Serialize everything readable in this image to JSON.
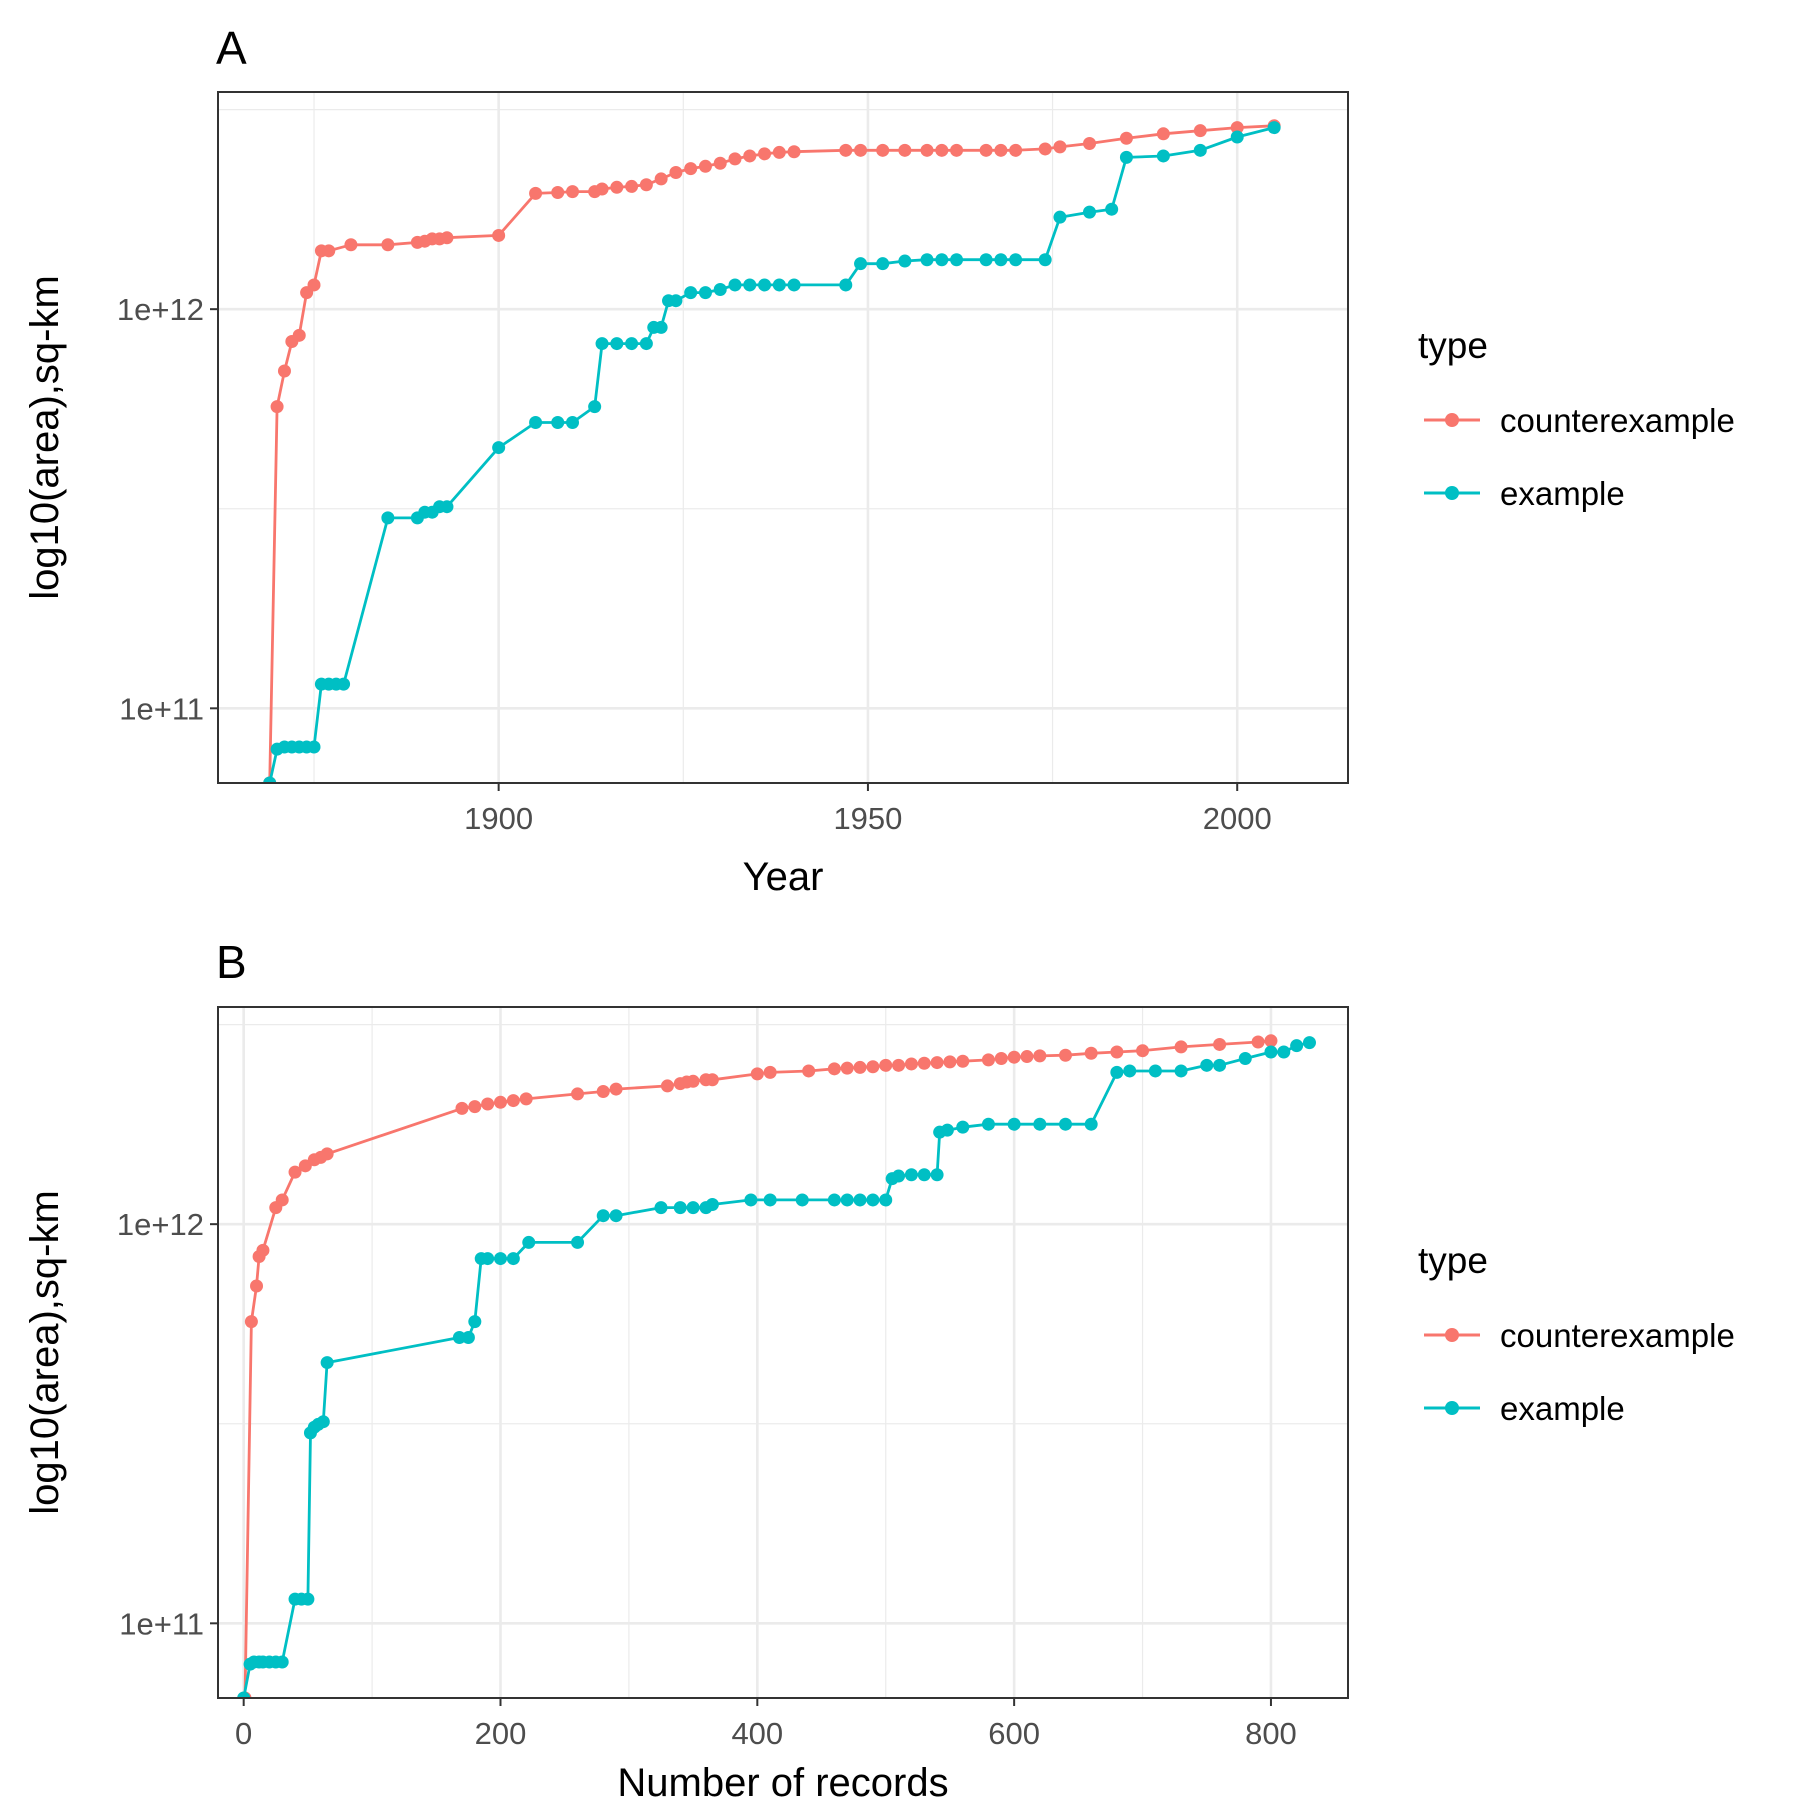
{
  "chart_data": [
    {
      "panel": "A",
      "type": "line",
      "xlabel": "Year",
      "ylabel": "log10(area),sq-km",
      "y_scale": "log10",
      "xlim": [
        1862,
        2015
      ],
      "ylim": [
        65000000000.0,
        3500000000000.0
      ],
      "x_ticks": [
        1900,
        1950,
        2000
      ],
      "x_tick_labels": [
        "1900",
        "1950",
        "2000"
      ],
      "y_ticks": [
        100000000000.0,
        1000000000000.0
      ],
      "y_tick_labels": [
        "1e+11",
        "1e+12"
      ],
      "grid": true,
      "legend": {
        "title": "type",
        "position": "right"
      },
      "series": [
        {
          "name": "counterexample",
          "color": "#F8766D",
          "x": [
            1869,
            1870,
            1871,
            1872,
            1873,
            1874,
            1875,
            1876,
            1877,
            1880,
            1885,
            1889,
            1890,
            1891,
            1892,
            1893,
            1900,
            1905,
            1908,
            1910,
            1913,
            1914,
            1916,
            1918,
            1920,
            1922,
            1924,
            1926,
            1928,
            1930,
            1932,
            1934,
            1936,
            1938,
            1940,
            1947,
            1949,
            1952,
            1955,
            1958,
            1960,
            1962,
            1966,
            1968,
            1970,
            1974,
            1976,
            1980,
            1985,
            1990,
            1995,
            2000,
            2005
          ],
          "values": [
            65000000000.0,
            570000000000.0,
            700000000000.0,
            830000000000.0,
            860000000000.0,
            1100000000000.0,
            1150000000000.0,
            1400000000000.0,
            1400000000000.0,
            1450000000000.0,
            1450000000000.0,
            1470000000000.0,
            1480000000000.0,
            1500000000000.0,
            1500000000000.0,
            1510000000000.0,
            1530000000000.0,
            1950000000000.0,
            1960000000000.0,
            1970000000000.0,
            1970000000000.0,
            2000000000000.0,
            2020000000000.0,
            2030000000000.0,
            2050000000000.0,
            2120000000000.0,
            2200000000000.0,
            2250000000000.0,
            2280000000000.0,
            2320000000000.0,
            2380000000000.0,
            2420000000000.0,
            2450000000000.0,
            2470000000000.0,
            2480000000000.0,
            2500000000000.0,
            2500000000000.0,
            2500000000000.0,
            2500000000000.0,
            2500000000000.0,
            2500000000000.0,
            2500000000000.0,
            2500000000000.0,
            2500000000000.0,
            2500000000000.0,
            2520000000000.0,
            2550000000000.0,
            2600000000000.0,
            2680000000000.0,
            2750000000000.0,
            2800000000000.0,
            2850000000000.0,
            2880000000000.0
          ]
        },
        {
          "name": "example",
          "color": "#00BFC4",
          "x": [
            1869,
            1870,
            1871,
            1872,
            1873,
            1874,
            1875,
            1876,
            1877,
            1878,
            1879,
            1885,
            1889,
            1890,
            1891,
            1892,
            1893,
            1900,
            1905,
            1908,
            1910,
            1913,
            1914,
            1916,
            1918,
            1920,
            1921,
            1922,
            1923,
            1924,
            1926,
            1928,
            1930,
            1932,
            1934,
            1936,
            1938,
            1940,
            1947,
            1949,
            1952,
            1955,
            1958,
            1960,
            1962,
            1966,
            1968,
            1970,
            1974,
            1976,
            1980,
            1983,
            1985,
            1990,
            1995,
            2000,
            2005
          ],
          "values": [
            65000000000.0,
            79000000000.0,
            80000000000.0,
            80000000000.0,
            80000000000.0,
            80000000000.0,
            80000000000.0,
            115000000000.0,
            115000000000.0,
            115000000000.0,
            115000000000.0,
            300000000000.0,
            300000000000.0,
            310000000000.0,
            310000000000.0,
            320000000000.0,
            320000000000.0,
            450000000000.0,
            520000000000.0,
            520000000000.0,
            520000000000.0,
            570000000000.0,
            820000000000.0,
            820000000000.0,
            820000000000.0,
            820000000000.0,
            900000000000.0,
            900000000000.0,
            1050000000000.0,
            1050000000000.0,
            1100000000000.0,
            1100000000000.0,
            1120000000000.0,
            1150000000000.0,
            1150000000000.0,
            1150000000000.0,
            1150000000000.0,
            1150000000000.0,
            1150000000000.0,
            1300000000000.0,
            1300000000000.0,
            1320000000000.0,
            1330000000000.0,
            1330000000000.0,
            1330000000000.0,
            1330000000000.0,
            1330000000000.0,
            1330000000000.0,
            1330000000000.0,
            1700000000000.0,
            1750000000000.0,
            1780000000000.0,
            2400000000000.0,
            2420000000000.0,
            2500000000000.0,
            2700000000000.0,
            2850000000000.0
          ]
        }
      ]
    },
    {
      "panel": "B",
      "type": "line",
      "xlabel": "Number of records",
      "ylabel": "log10(area),sq-km",
      "y_scale": "log10",
      "xlim": [
        -20,
        860
      ],
      "ylim": [
        65000000000.0,
        3500000000000.0
      ],
      "x_ticks": [
        0,
        200,
        400,
        600,
        800
      ],
      "x_tick_labels": [
        "0",
        "200",
        "400",
        "600",
        "800"
      ],
      "y_ticks": [
        100000000000.0,
        1000000000000.0
      ],
      "y_tick_labels": [
        "1e+11",
        "1e+12"
      ],
      "grid": true,
      "legend": {
        "title": "type",
        "position": "right"
      },
      "series": [
        {
          "name": "counterexample",
          "color": "#F8766D",
          "x": [
            1,
            6,
            10,
            12,
            15,
            25,
            30,
            40,
            48,
            55,
            60,
            65,
            170,
            180,
            190,
            200,
            210,
            220,
            260,
            280,
            290,
            330,
            340,
            345,
            350,
            360,
            365,
            400,
            410,
            440,
            460,
            470,
            480,
            490,
            500,
            510,
            520,
            530,
            540,
            550,
            560,
            580,
            590,
            600,
            610,
            620,
            640,
            660,
            680,
            700,
            730,
            760,
            790,
            800
          ],
          "values": [
            65000000000.0,
            570000000000.0,
            700000000000.0,
            830000000000.0,
            860000000000.0,
            1100000000000.0,
            1150000000000.0,
            1350000000000.0,
            1400000000000.0,
            1450000000000.0,
            1470000000000.0,
            1500000000000.0,
            1950000000000.0,
            1970000000000.0,
            2000000000000.0,
            2020000000000.0,
            2040000000000.0,
            2060000000000.0,
            2120000000000.0,
            2150000000000.0,
            2180000000000.0,
            2220000000000.0,
            2250000000000.0,
            2270000000000.0,
            2280000000000.0,
            2300000000000.0,
            2300000000000.0,
            2380000000000.0,
            2400000000000.0,
            2420000000000.0,
            2450000000000.0,
            2460000000000.0,
            2470000000000.0,
            2480000000000.0,
            2500000000000.0,
            2500000000000.0,
            2520000000000.0,
            2530000000000.0,
            2540000000000.0,
            2550000000000.0,
            2560000000000.0,
            2580000000000.0,
            2600000000000.0,
            2620000000000.0,
            2630000000000.0,
            2640000000000.0,
            2650000000000.0,
            2680000000000.0,
            2700000000000.0,
            2720000000000.0,
            2780000000000.0,
            2820000000000.0,
            2860000000000.0,
            2880000000000.0
          ]
        },
        {
          "name": "example",
          "color": "#00BFC4",
          "x": [
            0,
            5,
            8,
            12,
            15,
            20,
            25,
            30,
            40,
            45,
            50,
            52,
            55,
            58,
            62,
            65,
            168,
            175,
            180,
            185,
            190,
            200,
            210,
            222,
            260,
            280,
            290,
            325,
            340,
            350,
            360,
            365,
            395,
            410,
            435,
            460,
            470,
            480,
            490,
            500,
            505,
            510,
            520,
            530,
            540,
            542,
            548,
            560,
            580,
            600,
            620,
            640,
            660,
            680,
            690,
            710,
            730,
            750,
            760,
            780,
            800,
            810,
            820,
            830
          ],
          "values": [
            65000000000.0,
            79000000000.0,
            80000000000.0,
            80000000000.0,
            80000000000.0,
            80000000000.0,
            80000000000.0,
            80000000000.0,
            115000000000.0,
            115000000000.0,
            115000000000.0,
            300000000000.0,
            310000000000.0,
            315000000000.0,
            320000000000.0,
            450000000000.0,
            520000000000.0,
            520000000000.0,
            570000000000.0,
            820000000000.0,
            820000000000.0,
            820000000000.0,
            820000000000.0,
            900000000000.0,
            900000000000.0,
            1050000000000.0,
            1050000000000.0,
            1100000000000.0,
            1100000000000.0,
            1100000000000.0,
            1100000000000.0,
            1120000000000.0,
            1150000000000.0,
            1150000000000.0,
            1150000000000.0,
            1150000000000.0,
            1150000000000.0,
            1150000000000.0,
            1150000000000.0,
            1150000000000.0,
            1300000000000.0,
            1320000000000.0,
            1330000000000.0,
            1330000000000.0,
            1330000000000.0,
            1700000000000.0,
            1720000000000.0,
            1750000000000.0,
            1780000000000.0,
            1780000000000.0,
            1780000000000.0,
            1780000000000.0,
            1780000000000.0,
            2400000000000.0,
            2420000000000.0,
            2420000000000.0,
            2420000000000.0,
            2500000000000.0,
            2500000000000.0,
            2600000000000.0,
            2700000000000.0,
            2700000000000.0,
            2800000000000.0,
            2850000000000.0
          ]
        }
      ]
    }
  ]
}
